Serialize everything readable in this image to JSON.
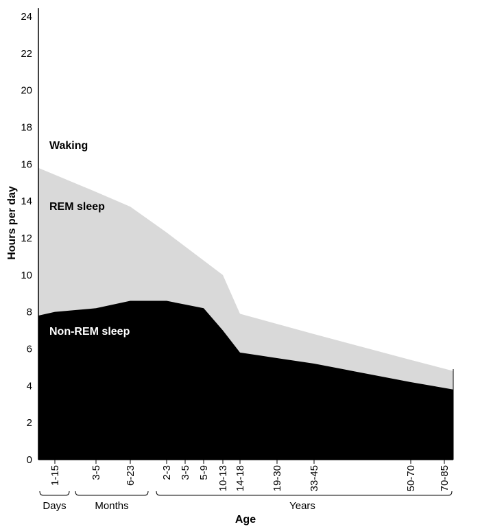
{
  "chart_data": {
    "type": "area",
    "xlabel": "Age",
    "ylabel": "Hours per day",
    "ylim": [
      0,
      24
    ],
    "y_ticks": [
      0,
      2,
      4,
      6,
      8,
      10,
      12,
      14,
      16,
      18,
      20,
      22,
      24
    ],
    "x_tick_labels": [
      {
        "label": "1-15",
        "age_days": 8
      },
      {
        "label": "3-5",
        "age_days": 120
      },
      {
        "label": "6-23",
        "age_days": 435
      },
      {
        "label": "2-3",
        "age_days": 913
      },
      {
        "label": "3-5",
        "age_days": 1460
      },
      {
        "label": "5-9",
        "age_days": 2555
      },
      {
        "label": "10-13",
        "age_days": 4200
      },
      {
        "label": "14-18",
        "age_days": 5840
      },
      {
        "label": "19-30",
        "age_days": 9000
      },
      {
        "label": "33-45",
        "age_days": 14000
      },
      {
        "label": "50-70",
        "age_days": 22000
      },
      {
        "label": "70-85",
        "age_days": 28000
      }
    ],
    "age_groups": [
      {
        "label": "Days"
      },
      {
        "label": "Months"
      },
      {
        "label": "Years"
      }
    ],
    "series": [
      {
        "name": "Non-REM sleep",
        "color": "#000000",
        "points": [
          {
            "age": "birth",
            "hours": 7.8
          },
          {
            "age": "1-15",
            "hours": 8.0
          },
          {
            "age": "3-5",
            "hours": 8.2
          },
          {
            "age": "6-23",
            "hours": 8.6
          },
          {
            "age": "2-3",
            "hours": 8.6
          },
          {
            "age": "3-5",
            "hours": 8.4
          },
          {
            "age": "5-9",
            "hours": 8.2
          },
          {
            "age": "10-13",
            "hours": 7.0
          },
          {
            "age": "14-18",
            "hours": 5.8
          },
          {
            "age": "19-30",
            "hours": 5.5
          },
          {
            "age": "33-45",
            "hours": 5.2
          },
          {
            "age": "50-70",
            "hours": 4.2
          },
          {
            "age": "70-85",
            "hours": 3.8
          }
        ]
      },
      {
        "name": "REM sleep",
        "color": "#d9d9d9",
        "points": [
          {
            "age": "birth",
            "hours": 15.8
          },
          {
            "age": "3-5",
            "hours": 14.5
          },
          {
            "age": "6-23",
            "hours": 13.7
          },
          {
            "age": "2-3",
            "hours": 12.3
          },
          {
            "age": "10-13",
            "hours": 10.0
          },
          {
            "age": "14-18",
            "hours": 7.9
          },
          {
            "age": "33-45",
            "hours": 6.8
          },
          {
            "age": "50-70",
            "hours": 5.4
          },
          {
            "age": "70-85",
            "hours": 4.8
          }
        ]
      }
    ],
    "region_labels": [
      "Waking",
      "REM sleep",
      "Non-REM sleep"
    ]
  }
}
